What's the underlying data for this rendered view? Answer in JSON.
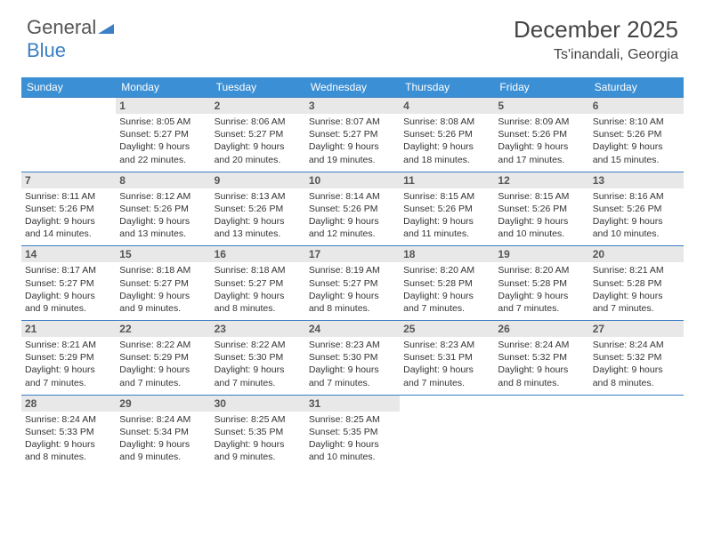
{
  "brand": {
    "part1": "General",
    "part2": "Blue"
  },
  "title": "December 2025",
  "location": "Ts'inandali, Georgia",
  "colors": {
    "header_bg": "#3b8fd4",
    "border": "#3b7fc4",
    "daynum_bg": "#e8e8e8",
    "text": "#333333"
  },
  "daysOfWeek": [
    "Sunday",
    "Monday",
    "Tuesday",
    "Wednesday",
    "Thursday",
    "Friday",
    "Saturday"
  ],
  "weeks": [
    [
      {
        "n": "",
        "sr": "",
        "ss": "",
        "dl": ""
      },
      {
        "n": "1",
        "sr": "8:05 AM",
        "ss": "5:27 PM",
        "dl": "9 hours and 22 minutes."
      },
      {
        "n": "2",
        "sr": "8:06 AM",
        "ss": "5:27 PM",
        "dl": "9 hours and 20 minutes."
      },
      {
        "n": "3",
        "sr": "8:07 AM",
        "ss": "5:27 PM",
        "dl": "9 hours and 19 minutes."
      },
      {
        "n": "4",
        "sr": "8:08 AM",
        "ss": "5:26 PM",
        "dl": "9 hours and 18 minutes."
      },
      {
        "n": "5",
        "sr": "8:09 AM",
        "ss": "5:26 PM",
        "dl": "9 hours and 17 minutes."
      },
      {
        "n": "6",
        "sr": "8:10 AM",
        "ss": "5:26 PM",
        "dl": "9 hours and 15 minutes."
      }
    ],
    [
      {
        "n": "7",
        "sr": "8:11 AM",
        "ss": "5:26 PM",
        "dl": "9 hours and 14 minutes."
      },
      {
        "n": "8",
        "sr": "8:12 AM",
        "ss": "5:26 PM",
        "dl": "9 hours and 13 minutes."
      },
      {
        "n": "9",
        "sr": "8:13 AM",
        "ss": "5:26 PM",
        "dl": "9 hours and 13 minutes."
      },
      {
        "n": "10",
        "sr": "8:14 AM",
        "ss": "5:26 PM",
        "dl": "9 hours and 12 minutes."
      },
      {
        "n": "11",
        "sr": "8:15 AM",
        "ss": "5:26 PM",
        "dl": "9 hours and 11 minutes."
      },
      {
        "n": "12",
        "sr": "8:15 AM",
        "ss": "5:26 PM",
        "dl": "9 hours and 10 minutes."
      },
      {
        "n": "13",
        "sr": "8:16 AM",
        "ss": "5:26 PM",
        "dl": "9 hours and 10 minutes."
      }
    ],
    [
      {
        "n": "14",
        "sr": "8:17 AM",
        "ss": "5:27 PM",
        "dl": "9 hours and 9 minutes."
      },
      {
        "n": "15",
        "sr": "8:18 AM",
        "ss": "5:27 PM",
        "dl": "9 hours and 9 minutes."
      },
      {
        "n": "16",
        "sr": "8:18 AM",
        "ss": "5:27 PM",
        "dl": "9 hours and 8 minutes."
      },
      {
        "n": "17",
        "sr": "8:19 AM",
        "ss": "5:27 PM",
        "dl": "9 hours and 8 minutes."
      },
      {
        "n": "18",
        "sr": "8:20 AM",
        "ss": "5:28 PM",
        "dl": "9 hours and 7 minutes."
      },
      {
        "n": "19",
        "sr": "8:20 AM",
        "ss": "5:28 PM",
        "dl": "9 hours and 7 minutes."
      },
      {
        "n": "20",
        "sr": "8:21 AM",
        "ss": "5:28 PM",
        "dl": "9 hours and 7 minutes."
      }
    ],
    [
      {
        "n": "21",
        "sr": "8:21 AM",
        "ss": "5:29 PM",
        "dl": "9 hours and 7 minutes."
      },
      {
        "n": "22",
        "sr": "8:22 AM",
        "ss": "5:29 PM",
        "dl": "9 hours and 7 minutes."
      },
      {
        "n": "23",
        "sr": "8:22 AM",
        "ss": "5:30 PM",
        "dl": "9 hours and 7 minutes."
      },
      {
        "n": "24",
        "sr": "8:23 AM",
        "ss": "5:30 PM",
        "dl": "9 hours and 7 minutes."
      },
      {
        "n": "25",
        "sr": "8:23 AM",
        "ss": "5:31 PM",
        "dl": "9 hours and 7 minutes."
      },
      {
        "n": "26",
        "sr": "8:24 AM",
        "ss": "5:32 PM",
        "dl": "9 hours and 8 minutes."
      },
      {
        "n": "27",
        "sr": "8:24 AM",
        "ss": "5:32 PM",
        "dl": "9 hours and 8 minutes."
      }
    ],
    [
      {
        "n": "28",
        "sr": "8:24 AM",
        "ss": "5:33 PM",
        "dl": "9 hours and 8 minutes."
      },
      {
        "n": "29",
        "sr": "8:24 AM",
        "ss": "5:34 PM",
        "dl": "9 hours and 9 minutes."
      },
      {
        "n": "30",
        "sr": "8:25 AM",
        "ss": "5:35 PM",
        "dl": "9 hours and 9 minutes."
      },
      {
        "n": "31",
        "sr": "8:25 AM",
        "ss": "5:35 PM",
        "dl": "9 hours and 10 minutes."
      },
      {
        "n": "",
        "sr": "",
        "ss": "",
        "dl": ""
      },
      {
        "n": "",
        "sr": "",
        "ss": "",
        "dl": ""
      },
      {
        "n": "",
        "sr": "",
        "ss": "",
        "dl": ""
      }
    ]
  ],
  "labels": {
    "sunrise": "Sunrise: ",
    "sunset": "Sunset: ",
    "daylight": "Daylight: "
  }
}
